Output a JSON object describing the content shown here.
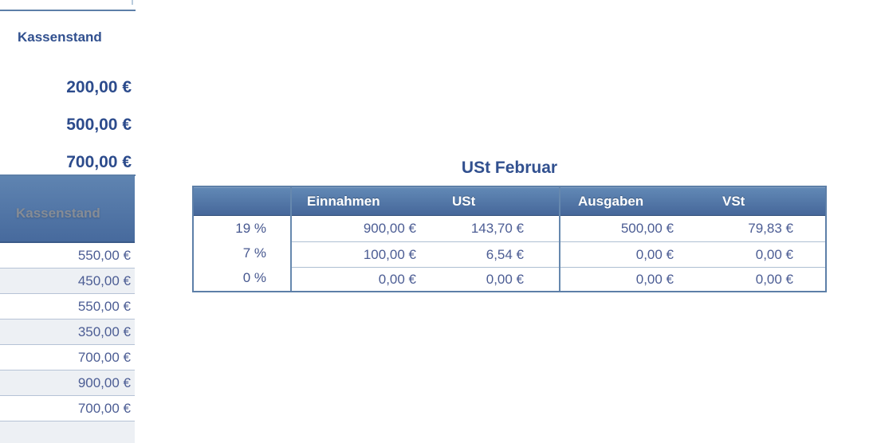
{
  "left_panel": {
    "summary": {
      "title": "Kassenstand",
      "values": [
        "200,00 €",
        "500,00 €",
        "700,00 €"
      ]
    },
    "table": {
      "header": "Kassenstand",
      "rows": [
        "550,00 €",
        "450,00 €",
        "550,00 €",
        "350,00 €",
        "700,00 €",
        "900,00 €",
        "700,00 €"
      ]
    }
  },
  "ust": {
    "title": "USt Februar",
    "columns": [
      "",
      "Einnahmen",
      "USt",
      "Ausgaben",
      "VSt"
    ],
    "rows": [
      [
        "19 %",
        "900,00 €",
        "143,70 €",
        "500,00 €",
        "79,83 €"
      ],
      [
        "7 %",
        "100,00 €",
        "6,54 €",
        "0,00 €",
        "0,00 €"
      ],
      [
        "0 %",
        "0,00 €",
        "0,00 €",
        "0,00 €",
        "0,00 €"
      ]
    ]
  },
  "colors": {
    "accent_line": "#5d7fa8",
    "header_gradient_top": "#6289b6",
    "header_gradient_bottom": "#456699",
    "title_text": "#31508f",
    "value_text": "#4c5d94",
    "alt_row_bg": "#edf0f4",
    "row_border": "#b6c3d6",
    "inactive_header_text": "#868c95"
  }
}
